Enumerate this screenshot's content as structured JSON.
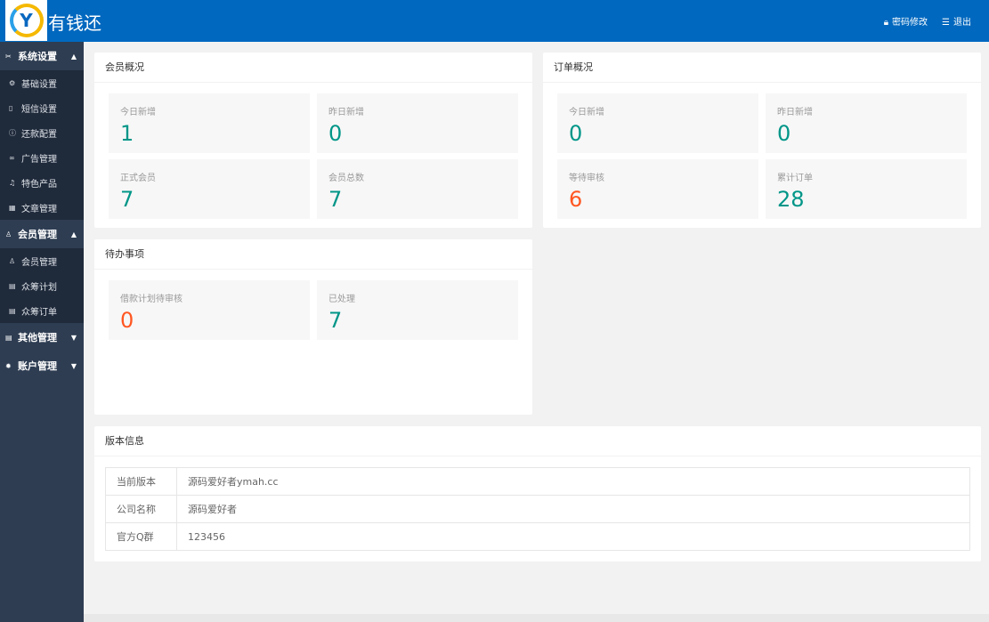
{
  "header": {
    "brand": "有钱还",
    "logo_text": "Y",
    "password_label": "密码修改",
    "logout_label": "退出"
  },
  "sidebar": {
    "groups": [
      {
        "label": "系统设置",
        "expanded": true,
        "items": [
          "基础设置",
          "短信设置",
          "还款配置",
          "广告管理",
          "特色产品",
          "文章管理"
        ]
      },
      {
        "label": "会员管理",
        "expanded": true,
        "items": [
          "会员管理",
          "众筹计划",
          "众筹订单"
        ]
      },
      {
        "label": "其他管理",
        "expanded": false,
        "items": []
      },
      {
        "label": "账户管理",
        "expanded": false,
        "items": []
      }
    ]
  },
  "member": {
    "title": "会员概况",
    "stats": [
      {
        "label": "今日新增",
        "value": "1"
      },
      {
        "label": "昨日新增",
        "value": "0"
      },
      {
        "label": "正式会员",
        "value": "7"
      },
      {
        "label": "会员总数",
        "value": "7"
      }
    ]
  },
  "order": {
    "title": "订单概况",
    "stats": [
      {
        "label": "今日新增",
        "value": "0"
      },
      {
        "label": "昨日新增",
        "value": "0"
      },
      {
        "label": "等待审核",
        "value": "6"
      },
      {
        "label": "累计订单",
        "value": "28"
      }
    ]
  },
  "todo": {
    "title": "待办事项",
    "stats": [
      {
        "label": "借款计划待审核",
        "value": "0"
      },
      {
        "label": "已处理",
        "value": "7"
      }
    ]
  },
  "version": {
    "title": "版本信息",
    "rows": [
      {
        "key": "当前版本",
        "value": "源码爱好者ymah.cc"
      },
      {
        "key": "公司名称",
        "value": "源码爱好者"
      },
      {
        "key": "官方Q群",
        "value": "123456"
      }
    ]
  },
  "colors": {
    "header": "#0068bf",
    "sidebar": "#2e3d52",
    "value": "#009688",
    "warn": "#ff5722"
  }
}
